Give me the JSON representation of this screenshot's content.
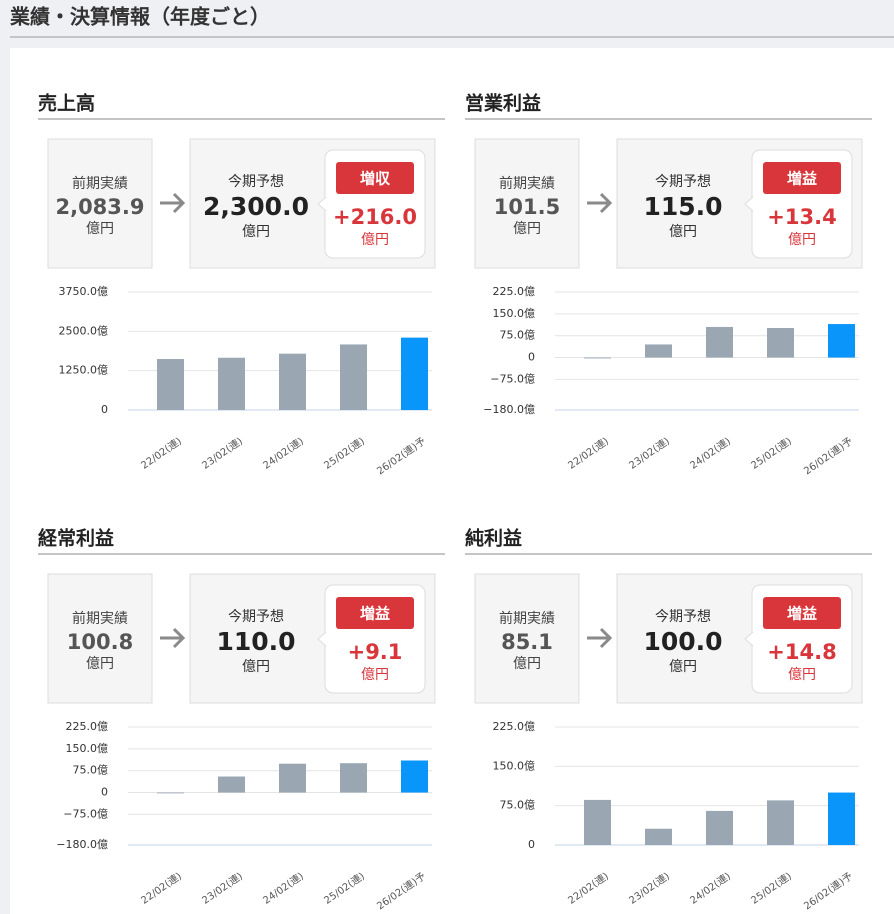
{
  "header": {
    "title": "業績・決算情報（年度ごと）"
  },
  "chart_data": [
    {
      "type": "bar",
      "title": "売上高",
      "summary": {
        "prev_label": "前期実績",
        "prev_value": "2,083.9",
        "prev_unit": "億円",
        "forecast_label": "今期予想",
        "forecast_value": "2,300.0",
        "forecast_unit": "億円",
        "badge": "増収",
        "change": "+216.0",
        "change_unit": "億円"
      },
      "categories": [
        "22/02(連)",
        "23/02(連)",
        "24/02(連)",
        "25/02(連)",
        "26/02(連)予"
      ],
      "values": [
        1620,
        1660,
        1790,
        2083.9,
        2300
      ],
      "colors": [
        "#9aa7b3",
        "#9aa7b3",
        "#9aa7b3",
        "#9aa7b3",
        "#0a95fb"
      ],
      "ylim": [
        0,
        3750
      ],
      "yticks": [
        0,
        {
          "value": 1250,
          "label": "1250.0億"
        },
        {
          "value": 2500,
          "label": "2500.0億"
        },
        {
          "value": 3750,
          "label": "3750.0億"
        }
      ],
      "grid": true
    },
    {
      "type": "bar",
      "title": "営業利益",
      "summary": {
        "prev_label": "前期実績",
        "prev_value": "101.5",
        "prev_unit": "億円",
        "forecast_label": "今期予想",
        "forecast_value": "115.0",
        "forecast_unit": "億円",
        "badge": "増益",
        "change": "+13.4",
        "change_unit": "億円"
      },
      "categories": [
        "22/02(連)",
        "23/02(連)",
        "24/02(連)",
        "25/02(連)",
        "26/02(連)予"
      ],
      "values": [
        -3,
        45,
        105,
        101.5,
        115
      ],
      "colors": [
        "#9aa7b3",
        "#9aa7b3",
        "#9aa7b3",
        "#9aa7b3",
        "#0a95fb"
      ],
      "ylim": [
        -180,
        225
      ],
      "yticks": [
        {
          "value": -180,
          "label": "−180.0億"
        },
        {
          "value": -75,
          "label": "−75.0億"
        },
        0,
        {
          "value": 75,
          "label": "75.0億"
        },
        {
          "value": 150,
          "label": "150.0億"
        },
        {
          "value": 225,
          "label": "225.0億"
        }
      ],
      "grid": true
    },
    {
      "type": "bar",
      "title": "経常利益",
      "summary": {
        "prev_label": "前期実績",
        "prev_value": "100.8",
        "prev_unit": "億円",
        "forecast_label": "今期予想",
        "forecast_value": "110.0",
        "forecast_unit": "億円",
        "badge": "増益",
        "change": "+9.1",
        "change_unit": "億円"
      },
      "categories": [
        "22/02(連)",
        "23/02(連)",
        "24/02(連)",
        "25/02(連)",
        "26/02(連)予"
      ],
      "values": [
        0,
        55,
        99,
        100.8,
        110
      ],
      "colors": [
        "#9aa7b3",
        "#9aa7b3",
        "#9aa7b3",
        "#9aa7b3",
        "#0a95fb"
      ],
      "ylim": [
        -180,
        225
      ],
      "yticks": [
        {
          "value": -180,
          "label": "−180.0億"
        },
        {
          "value": -75,
          "label": "−75.0億"
        },
        0,
        {
          "value": 75,
          "label": "75.0億"
        },
        {
          "value": 150,
          "label": "150.0億"
        },
        {
          "value": 225,
          "label": "225.0億"
        }
      ],
      "grid": true
    },
    {
      "type": "bar",
      "title": "純利益",
      "summary": {
        "prev_label": "前期実績",
        "prev_value": "85.1",
        "prev_unit": "億円",
        "forecast_label": "今期予想",
        "forecast_value": "100.0",
        "forecast_unit": "億円",
        "badge": "増益",
        "change": "+14.8",
        "change_unit": "億円"
      },
      "categories": [
        "22/02(連)",
        "23/02(連)",
        "24/02(連)",
        "25/02(連)",
        "26/02(連)予"
      ],
      "values": [
        86,
        31,
        65,
        85.1,
        100
      ],
      "colors": [
        "#9aa7b3",
        "#9aa7b3",
        "#9aa7b3",
        "#9aa7b3",
        "#0a95fb"
      ],
      "ylim": [
        0,
        225
      ],
      "yticks": [
        0,
        {
          "value": 75,
          "label": "75.0億"
        },
        {
          "value": 150,
          "label": "150.0億"
        },
        {
          "value": 225,
          "label": "225.0億"
        }
      ],
      "grid": true
    }
  ]
}
